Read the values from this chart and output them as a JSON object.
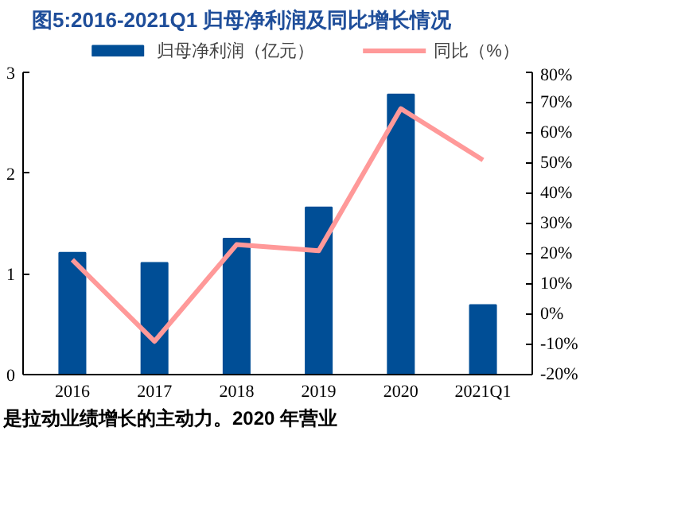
{
  "chart_data": {
    "type": "bar",
    "title": "图5:2016-2021Q1 归母净利润及同比增长情况",
    "categories": [
      "2016",
      "2017",
      "2018",
      "2019",
      "2020",
      "2021Q1"
    ],
    "series": [
      {
        "name": "归母净利润（亿元）",
        "color": "#004e96",
        "values": [
          1.21,
          1.11,
          1.35,
          1.66,
          2.78,
          0.69
        ]
      },
      {
        "name": "同比（%）",
        "color": "#ff9999",
        "type": "line",
        "axis": "y2",
        "values": [
          18,
          -9,
          23,
          21,
          68,
          51
        ]
      }
    ],
    "ylim": [
      0,
      3
    ],
    "yticks": [
      0,
      1,
      2,
      3
    ],
    "y2lim": [
      -20,
      80
    ],
    "y2ticks": [
      {
        "value": -20,
        "label": "-20%"
      },
      {
        "value": -10,
        "label": "-10%"
      },
      {
        "value": 0,
        "label": "0%"
      },
      {
        "value": 10,
        "label": "10%"
      },
      {
        "value": 20,
        "label": "20%"
      },
      {
        "value": 30,
        "label": "30%"
      },
      {
        "value": 40,
        "label": "40%"
      },
      {
        "value": 50,
        "label": "50%"
      },
      {
        "value": 60,
        "label": "60%"
      },
      {
        "value": 70,
        "label": "70%"
      },
      {
        "value": 80,
        "label": "80%"
      }
    ],
    "grid": false,
    "legend": "top",
    "line_style": "solid",
    "marker": "none",
    "annotations": [
      "是拉动业绩增长的主动力。2020 年营业"
    ]
  }
}
